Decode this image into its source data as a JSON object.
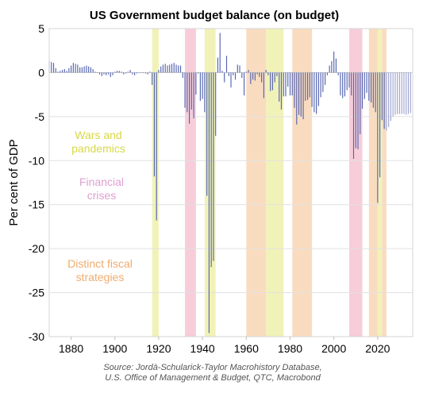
{
  "chart_data": {
    "type": "bar",
    "title": "US Government budget balance (on budget)",
    "ylabel": "Per cent of GDP",
    "xlim": [
      1870,
      2036
    ],
    "ylim": [
      -30,
      5
    ],
    "yticks": [
      5,
      0,
      -5,
      -10,
      -15,
      -20,
      -25,
      -30
    ],
    "xticks": [
      1880,
      1900,
      1920,
      1940,
      1960,
      1980,
      2000,
      2020
    ],
    "grid": "horizontal",
    "colors": {
      "historical": "#5565b0",
      "projection": "#9ea5d2",
      "wars": "#f1f2b8",
      "crises": "#f7cdd9",
      "strategies": "#f9dcc0"
    },
    "legend": [
      {
        "label": "Wars and\npandemics",
        "color": "#d8d84a"
      },
      {
        "label": "Financial\ncrises",
        "color": "#dfa0cf"
      },
      {
        "label": "Distinct fiscal\nstrategies",
        "color": "#f0ac6e"
      }
    ],
    "shaded_periods": [
      {
        "category": "wars",
        "start": 1917,
        "end": 1920
      },
      {
        "category": "crises",
        "start": 1932,
        "end": 1937
      },
      {
        "category": "wars",
        "start": 1941,
        "end": 1946
      },
      {
        "category": "strategies",
        "start": 1960,
        "end": 1969
      },
      {
        "category": "wars",
        "start": 1969,
        "end": 1977
      },
      {
        "category": "strategies",
        "start": 1981,
        "end": 1990
      },
      {
        "category": "crises",
        "start": 2007,
        "end": 2013
      },
      {
        "category": "strategies",
        "start": 2016,
        "end": 2020
      },
      {
        "category": "wars",
        "start": 2020,
        "end": 2022
      },
      {
        "category": "strategies",
        "start": 2022,
        "end": 2024
      }
    ],
    "series": [
      {
        "x": [
          1870,
          1871,
          1872,
          1873,
          1874,
          1875,
          1876,
          1877,
          1878,
          1879,
          1880,
          1881,
          1882,
          1883,
          1884,
          1885,
          1886,
          1887,
          1888,
          1889,
          1890,
          1891,
          1892,
          1893,
          1894,
          1895,
          1896,
          1897,
          1898,
          1899,
          1900,
          1901,
          1902,
          1903,
          1904,
          1905,
          1906,
          1907,
          1908,
          1909,
          1910,
          1911,
          1912,
          1913,
          1914,
          1915,
          1916,
          1917,
          1918,
          1919,
          1920,
          1921,
          1922,
          1923,
          1924,
          1925,
          1926,
          1927,
          1928,
          1929,
          1930,
          1931,
          1932,
          1933,
          1934,
          1935,
          1936,
          1937,
          1938,
          1939,
          1940,
          1941,
          1942,
          1943,
          1944,
          1945,
          1946,
          1947,
          1948,
          1949,
          1950,
          1951,
          1952,
          1953,
          1954,
          1955,
          1956,
          1957,
          1958,
          1959,
          1960,
          1961,
          1962,
          1963,
          1964,
          1965,
          1966,
          1967,
          1968,
          1969,
          1970,
          1971,
          1972,
          1973,
          1974,
          1975,
          1976,
          1977,
          1978,
          1979,
          1980,
          1981,
          1982,
          1983,
          1984,
          1985,
          1986,
          1987,
          1988,
          1989,
          1990,
          1991,
          1992,
          1993,
          1994,
          1995,
          1996,
          1997,
          1998,
          1999,
          2000,
          2001,
          2002,
          2003,
          2004,
          2005,
          2006,
          2007,
          2008,
          2009,
          2010,
          2011,
          2012,
          2013,
          2014,
          2015,
          2016,
          2017,
          2018,
          2019,
          2020,
          2021,
          2022,
          2023
        ],
        "values": [
          1.3,
          1.2,
          1.1,
          0.5,
          0.1,
          0.2,
          0.3,
          0.4,
          0.2,
          0.5,
          0.8,
          1.1,
          1.0,
          0.9,
          0.6,
          0.6,
          0.7,
          0.8,
          0.7,
          0.6,
          0.4,
          0.1,
          0.0,
          -0.2,
          -0.4,
          -0.2,
          -0.3,
          -0.2,
          -0.5,
          -0.3,
          0.1,
          0.2,
          0.2,
          0.1,
          -0.2,
          -0.1,
          0.1,
          0.3,
          -0.2,
          -0.3,
          -0.1,
          0.0,
          0.0,
          0.0,
          -0.1,
          -0.2,
          0.1,
          -1.4,
          -11.8,
          -16.8,
          0.3,
          0.7,
          0.9,
          1.0,
          0.8,
          0.9,
          1.0,
          1.1,
          0.9,
          0.8,
          0.8,
          -0.6,
          -4.0,
          -4.5,
          -5.8,
          -4.2,
          -5.2,
          -2.5,
          -0.1,
          -3.2,
          -3.0,
          -4.5,
          -14.0,
          -29.6,
          -22.1,
          -21.4,
          -7.2,
          1.7,
          4.5,
          0.2,
          -1.1,
          1.9,
          -0.4,
          -1.7,
          -0.3,
          -0.8,
          0.9,
          0.8,
          -0.6,
          -2.6,
          0.1,
          0.3,
          -1.3,
          -0.8,
          -0.9,
          -0.2,
          -0.5,
          -1.1,
          -2.9,
          0.3,
          -0.3,
          -2.1,
          -2.0,
          -1.1,
          -0.4,
          -3.3,
          -4.2,
          -2.7,
          -2.7,
          -1.6,
          -2.6,
          -2.6,
          -4.0,
          -5.9,
          -4.8,
          -5.0,
          -5.3,
          -3.2,
          -3.1,
          -2.8,
          -3.9,
          -4.5,
          -4.7,
          -3.8,
          -2.8,
          -2.2,
          -1.4,
          -0.3,
          0.8,
          1.3,
          2.4,
          1.6,
          -0.3,
          -2.6,
          -2.9,
          -2.7,
          -2.0,
          -1.7,
          -2.6,
          -9.8,
          -8.6,
          -8.7,
          -7.0,
          -4.1,
          -3.0,
          -2.3,
          -3.2,
          -3.4,
          -4.0,
          -4.5,
          -14.8,
          -11.9,
          -5.4,
          -6.4
        ]
      },
      {
        "x": [
          2024,
          2025,
          2026,
          2027,
          2028,
          2029,
          2030,
          2031,
          2032,
          2033,
          2034,
          2035
        ],
        "values": [
          -6.6,
          -6.2,
          -5.5,
          -5.0,
          -4.8,
          -4.7,
          -4.7,
          -4.7,
          -4.7,
          -4.8,
          -4.7,
          -4.6
        ]
      }
    ],
    "annotations": {
      "source": "Source: Jordà-Schularick-Taylor Macrohistory Database,\nU.S. Office of Management & Budget, QTC, Macrobond"
    }
  }
}
